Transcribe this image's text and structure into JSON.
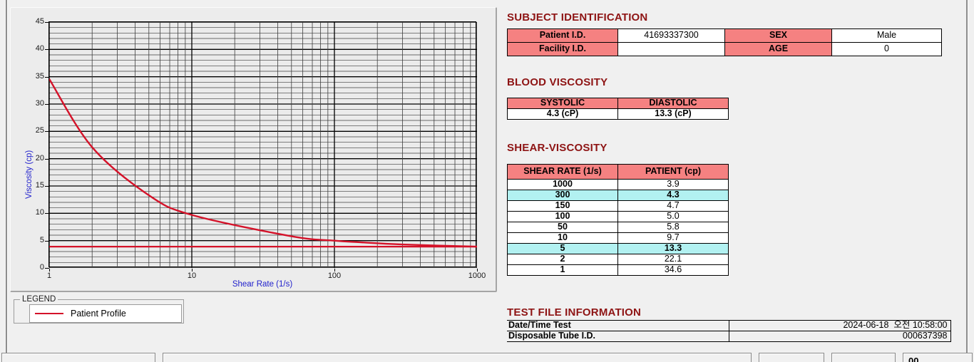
{
  "colors": {
    "heading": "#8e1414",
    "table_header_bg": "#f58181",
    "highlight_bg": "#b2f1f1",
    "curve": "#d41229",
    "axis_label": "#2222cc"
  },
  "chart_data": {
    "type": "line",
    "title": "",
    "xlabel": "Shear Rate (1/s)",
    "ylabel": "Viscosity (cp)",
    "x_scale": "log",
    "xlim": [
      1,
      1000
    ],
    "ylim": [
      0,
      45
    ],
    "x_ticks": [
      1,
      10,
      100,
      1000
    ],
    "y_ticks": [
      0,
      5,
      10,
      15,
      20,
      25,
      30,
      35,
      40,
      45
    ],
    "y_minor_step": 1,
    "grid": true,
    "series": [
      {
        "name": "Patient Profile",
        "color": "#d41229",
        "x": [
          1,
          2,
          5,
          10,
          50,
          100,
          150,
          300,
          1000
        ],
        "y": [
          34.6,
          22.1,
          13.3,
          9.7,
          5.8,
          5.0,
          4.7,
          4.3,
          3.9
        ]
      }
    ],
    "reference_line": {
      "y": 3.9,
      "color": "#d41229"
    },
    "legend": {
      "title": "LEGEND",
      "position": "below-left",
      "entries": [
        {
          "label": "Patient Profile",
          "color": "#d41229"
        }
      ]
    }
  },
  "subject_identification": {
    "heading": "SUBJECT IDENTIFICATION",
    "rows": [
      {
        "label_left": "Patient I.D.",
        "value_left": "41693337300",
        "label_right": "SEX",
        "value_right": "Male"
      },
      {
        "label_left": "Facility I.D.",
        "value_left": "",
        "label_right": "AGE",
        "value_right": "0"
      }
    ]
  },
  "blood_viscosity": {
    "heading": "BLOOD VISCOSITY",
    "columns": [
      "SYSTOLIC",
      "DIASTOLIC"
    ],
    "values": [
      "4.3 (cP)",
      "13.3 (cP)"
    ]
  },
  "shear_viscosity": {
    "heading": "SHEAR-VISCOSITY",
    "columns": [
      "SHEAR RATE (1/s)",
      "PATIENT (cp)"
    ],
    "rows": [
      {
        "rate": "1000",
        "value": "3.9",
        "highlight": false
      },
      {
        "rate": "300",
        "value": "4.3",
        "highlight": true
      },
      {
        "rate": "150",
        "value": "4.7",
        "highlight": false
      },
      {
        "rate": "100",
        "value": "5.0",
        "highlight": false
      },
      {
        "rate": "50",
        "value": "5.8",
        "highlight": false
      },
      {
        "rate": "10",
        "value": "9.7",
        "highlight": false
      },
      {
        "rate": "5",
        "value": "13.3",
        "highlight": true
      },
      {
        "rate": "2",
        "value": "22.1",
        "highlight": false
      },
      {
        "rate": "1",
        "value": "34.6",
        "highlight": false
      }
    ]
  },
  "test_file_information": {
    "heading": "TEST FILE INFORMATION",
    "rows": [
      {
        "label": "Date/Time Test",
        "value": "2024-06-18  오전 10:58:00"
      },
      {
        "label": "Disposable Tube I.D.",
        "value": "000637398"
      }
    ]
  },
  "bottom_bar": {
    "partial_text": "00"
  }
}
